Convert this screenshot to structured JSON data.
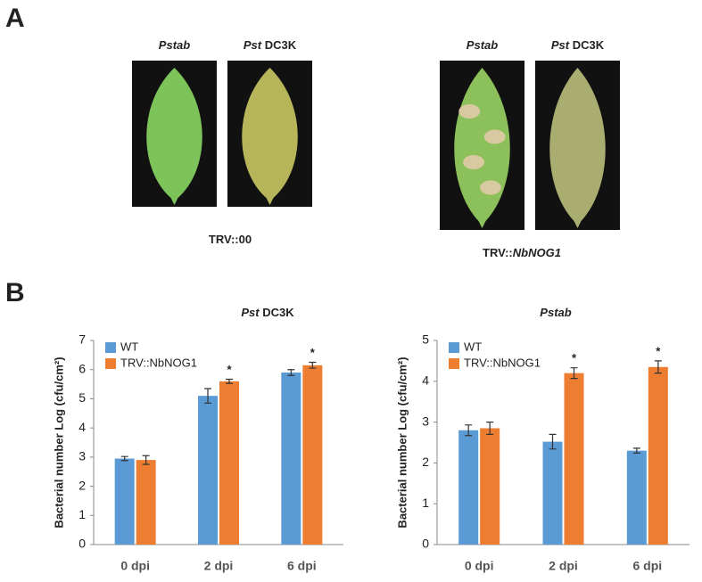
{
  "panel_a": {
    "label": "A",
    "groups": [
      {
        "caption": [
          {
            "text": "TRV::00"
          }
        ],
        "leaves": [
          {
            "title": [
              {
                "text": "Pstab",
                "italic": true
              }
            ]
          },
          {
            "title": [
              {
                "text": "Pst",
                "italic": true
              },
              {
                "text": " DC3K"
              }
            ]
          }
        ]
      },
      {
        "caption": [
          {
            "text": "TRV::"
          },
          {
            "text": "NbNOG1",
            "italic": true
          }
        ],
        "leaves": [
          {
            "title": [
              {
                "text": "Pstab",
                "italic": true
              }
            ]
          },
          {
            "title": [
              {
                "text": "Pst",
                "italic": true
              },
              {
                "text": " DC3K"
              }
            ]
          }
        ]
      }
    ]
  },
  "panel_b": {
    "label": "B"
  },
  "chart_data": [
    {
      "type": "bar",
      "title": [
        {
          "text": "Pst",
          "italic": true
        },
        {
          "text": " DC3K"
        }
      ],
      "ylabel": "Bacterial number Log (cfu/cm²)",
      "categories": [
        "0 dpi",
        "2 dpi",
        "6 dpi"
      ],
      "ylim": [
        0,
        7
      ],
      "yticks": [
        0,
        1,
        2,
        3,
        4,
        5,
        6,
        7
      ],
      "legend": "top-left",
      "series": [
        {
          "name": "WT",
          "color": "#5b9bd5",
          "values": [
            2.95,
            5.1,
            5.9
          ],
          "errors": [
            0.07,
            0.25,
            0.1
          ]
        },
        {
          "name": "TRV::NbNOG1",
          "color": "#ed7d31",
          "values": [
            2.9,
            5.6,
            6.15
          ],
          "errors": [
            0.15,
            0.07,
            0.1
          ],
          "markers": [
            null,
            "*",
            "*"
          ]
        }
      ]
    },
    {
      "type": "bar",
      "title": [
        {
          "text": "Pstab",
          "italic": true
        }
      ],
      "ylabel": "Bacterial number Log (cfu/cm²)",
      "categories": [
        "0 dpi",
        "2 dpi",
        "6 dpi"
      ],
      "ylim": [
        0,
        5
      ],
      "yticks": [
        0,
        1,
        2,
        3,
        4,
        5
      ],
      "legend": "top-left",
      "series": [
        {
          "name": "WT",
          "color": "#5b9bd5",
          "values": [
            2.8,
            2.52,
            2.3
          ],
          "errors": [
            0.13,
            0.18,
            0.06
          ]
        },
        {
          "name": "TRV::NbNOG1",
          "color": "#ed7d31",
          "values": [
            2.85,
            4.2,
            4.35
          ],
          "errors": [
            0.15,
            0.13,
            0.15
          ],
          "markers": [
            null,
            "*",
            "*"
          ]
        }
      ]
    }
  ]
}
